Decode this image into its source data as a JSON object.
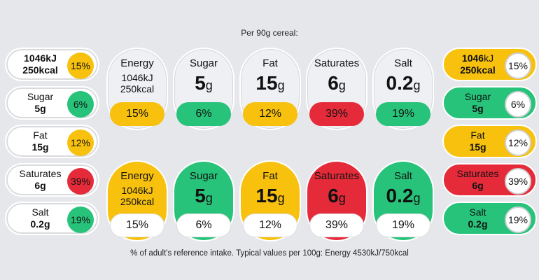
{
  "header": "Per 90g cereal:",
  "footer": "% of adult's reference intake. Typical values per 100g: Energy 4530kJ/750kcal",
  "colors": {
    "amber": "#f7c10e",
    "green": "#27c37a",
    "red": "#e52b3a",
    "background": "#e6e7eb"
  },
  "energy": {
    "kj": "1046kJ",
    "kcal": "250kcal"
  },
  "nutrients": [
    {
      "name": "Energy",
      "line1": "1046kJ",
      "line2": "250kcal",
      "pct": "15%",
      "color": "amber"
    },
    {
      "name": "Sugar",
      "value": "5",
      "unit": "g",
      "pct": "6%",
      "color": "green"
    },
    {
      "name": "Fat",
      "value": "15",
      "unit": "g",
      "pct": "12%",
      "color": "amber"
    },
    {
      "name": "Saturates",
      "value": "6",
      "unit": "g",
      "pct": "39%",
      "color": "red"
    },
    {
      "name": "Salt",
      "value": "0.2",
      "unit": "g",
      "pct": "19%",
      "color": "green"
    }
  ],
  "side_labels": {
    "energy": {
      "kj": "1046",
      "kj_unit": "kJ",
      "kcal": "250kcal"
    },
    "sugar": {
      "name": "Sugar",
      "value": "5g"
    },
    "fat": {
      "name": "Fat",
      "value": "15g"
    },
    "saturates": {
      "name": "Saturates",
      "value": "6g"
    },
    "salt": {
      "name": "Salt",
      "value": "0.2g"
    }
  }
}
